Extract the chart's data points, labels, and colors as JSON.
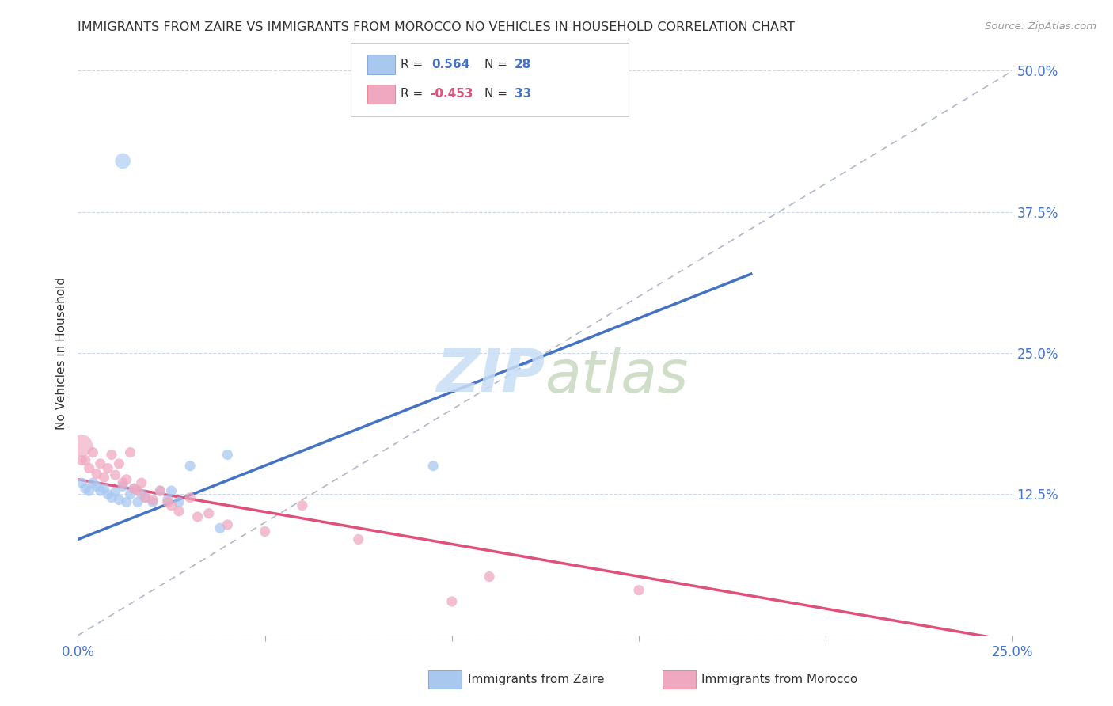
{
  "title": "IMMIGRANTS FROM ZAIRE VS IMMIGRANTS FROM MOROCCO NO VEHICLES IN HOUSEHOLD CORRELATION CHART",
  "source": "Source: ZipAtlas.com",
  "ylabel": "No Vehicles in Household",
  "xmin": 0.0,
  "xmax": 0.25,
  "ymin": 0.0,
  "ymax": 0.5,
  "legend_zaire_r": "0.564",
  "legend_zaire_n": "28",
  "legend_morocco_r": "-0.453",
  "legend_morocco_n": "33",
  "zaire_color": "#a8c8f0",
  "morocco_color": "#f0a8c0",
  "zaire_line_color": "#4472c4",
  "morocco_line_color": "#e0507a",
  "diagonal_color": "#b0b8c8",
  "watermark_zip_color": "#c8ddf5",
  "watermark_atlas_color": "#c8d8c0",
  "zaire_scatter": [
    [
      0.001,
      0.135
    ],
    [
      0.002,
      0.13
    ],
    [
      0.003,
      0.128
    ],
    [
      0.004,
      0.135
    ],
    [
      0.005,
      0.132
    ],
    [
      0.006,
      0.128
    ],
    [
      0.007,
      0.13
    ],
    [
      0.008,
      0.125
    ],
    [
      0.009,
      0.122
    ],
    [
      0.01,
      0.127
    ],
    [
      0.011,
      0.12
    ],
    [
      0.012,
      0.132
    ],
    [
      0.013,
      0.118
    ],
    [
      0.014,
      0.125
    ],
    [
      0.015,
      0.13
    ],
    [
      0.016,
      0.118
    ],
    [
      0.017,
      0.125
    ],
    [
      0.018,
      0.122
    ],
    [
      0.02,
      0.118
    ],
    [
      0.022,
      0.128
    ],
    [
      0.024,
      0.12
    ],
    [
      0.025,
      0.128
    ],
    [
      0.027,
      0.118
    ],
    [
      0.03,
      0.15
    ],
    [
      0.04,
      0.16
    ],
    [
      0.095,
      0.15
    ],
    [
      0.038,
      0.095
    ]
  ],
  "zaire_outlier": [
    0.012,
    0.42
  ],
  "zaire_outlier_size": 200,
  "morocco_scatter": [
    [
      0.001,
      0.155
    ],
    [
      0.002,
      0.155
    ],
    [
      0.003,
      0.148
    ],
    [
      0.004,
      0.162
    ],
    [
      0.005,
      0.143
    ],
    [
      0.006,
      0.152
    ],
    [
      0.007,
      0.14
    ],
    [
      0.008,
      0.148
    ],
    [
      0.009,
      0.16
    ],
    [
      0.01,
      0.142
    ],
    [
      0.011,
      0.152
    ],
    [
      0.012,
      0.135
    ],
    [
      0.013,
      0.138
    ],
    [
      0.014,
      0.162
    ],
    [
      0.015,
      0.13
    ],
    [
      0.016,
      0.128
    ],
    [
      0.017,
      0.135
    ],
    [
      0.018,
      0.122
    ],
    [
      0.02,
      0.12
    ],
    [
      0.022,
      0.128
    ],
    [
      0.024,
      0.118
    ],
    [
      0.025,
      0.115
    ],
    [
      0.027,
      0.11
    ],
    [
      0.03,
      0.122
    ],
    [
      0.032,
      0.105
    ],
    [
      0.035,
      0.108
    ],
    [
      0.04,
      0.098
    ],
    [
      0.05,
      0.092
    ],
    [
      0.06,
      0.115
    ],
    [
      0.075,
      0.085
    ],
    [
      0.11,
      0.052
    ],
    [
      0.15,
      0.04
    ],
    [
      0.1,
      0.03
    ]
  ],
  "morocco_large_dot": [
    0.001,
    0.168
  ],
  "morocco_large_dot_size": 400,
  "zaire_line_x0": 0.0,
  "zaire_line_y0": 0.085,
  "zaire_line_x1": 0.18,
  "zaire_line_y1": 0.32,
  "morocco_line_x0": 0.0,
  "morocco_line_y0": 0.138,
  "morocco_line_x1": 0.25,
  "morocco_line_y1": -0.005,
  "diagonal_line_x0": 0.0,
  "diagonal_line_y0": 0.0,
  "diagonal_line_x1": 0.25,
  "diagonal_line_y1": 0.5,
  "background_color": "#ffffff",
  "grid_color": "#d0d8e8",
  "title_color": "#303030",
  "right_tick_color": "#4472c4",
  "bottom_tick_color": "#4472c4"
}
